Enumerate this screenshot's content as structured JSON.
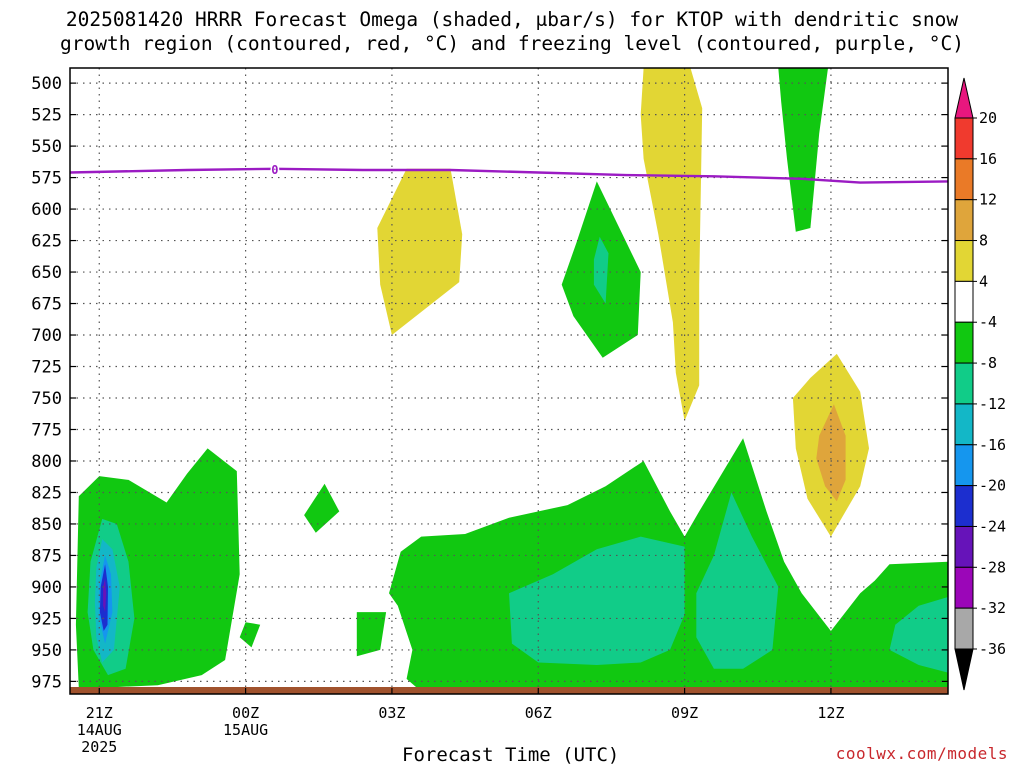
{
  "title": {
    "line1": "2025081420 HRRR Forecast Omega (shaded, μbar/s) for KTOP with dendritic snow",
    "line2": "growth region (contoured, red, °C) and freezing level (contoured, purple, °C)"
  },
  "credit": "coolwx.com/models",
  "colors": {
    "freezing_line": "#9b1bc3",
    "ground": "#a0522d",
    "grid": "#555555"
  },
  "chart_data": {
    "type": "filled-contour",
    "xlabel": "Forecast Time (UTC)",
    "ylabel": "",
    "x_range_hours_from_run": [
      0,
      30
    ],
    "x_ticks": [
      {
        "hour": 1,
        "label": [
          "21Z",
          "14AUG",
          "2025"
        ]
      },
      {
        "hour": 6,
        "label": [
          "00Z",
          "15AUG"
        ]
      },
      {
        "hour": 11,
        "label": [
          "03Z"
        ]
      },
      {
        "hour": 16,
        "label": [
          "06Z"
        ]
      },
      {
        "hour": 21,
        "label": [
          "09Z"
        ]
      },
      {
        "hour": 26,
        "label": [
          "12Z"
        ]
      }
    ],
    "y_axis": {
      "quantity": "pressure (mb)",
      "range": [
        488,
        985
      ],
      "ticks": [
        500,
        525,
        550,
        575,
        600,
        625,
        650,
        675,
        700,
        725,
        750,
        775,
        800,
        825,
        850,
        875,
        900,
        925,
        950,
        975
      ]
    },
    "grid": true,
    "colorbar": {
      "position": "right",
      "levels": [
        "20",
        "16",
        "12",
        "8",
        "4",
        "-4",
        "-8",
        "-12",
        "-16",
        "-20",
        "-24",
        "-28",
        "-32",
        "-36"
      ],
      "colors": [
        "#e8177e",
        "#f03a2e",
        "#ea7a27",
        "#dfa53b",
        "#e2d634",
        "#ffffff",
        "#11c811",
        "#11cc88",
        "#13b7c7",
        "#1596ee",
        "#1c2ecf",
        "#6613b9",
        "#9b06b8",
        "#a8a8a8",
        "#000000"
      ]
    },
    "freezing_level_0C": {
      "color": "purple",
      "label": "0",
      "points": [
        [
          0,
          571
        ],
        [
          4,
          569
        ],
        [
          7,
          568
        ],
        [
          10,
          569
        ],
        [
          13,
          569
        ],
        [
          16,
          571
        ],
        [
          19,
          573
        ],
        [
          22,
          574
        ],
        [
          25,
          576
        ],
        [
          27,
          579
        ],
        [
          30,
          578
        ]
      ]
    },
    "omega_regions": [
      {
        "value": 6,
        "polygon": [
          [
            10.5,
            615
          ],
          [
            11.5,
            568
          ],
          [
            13,
            568
          ],
          [
            13.4,
            620
          ],
          [
            13.3,
            658
          ],
          [
            11,
            700
          ],
          [
            10.6,
            660
          ]
        ]
      },
      {
        "value": 6,
        "polygon": [
          [
            19.6,
            488
          ],
          [
            21.2,
            488
          ],
          [
            21.6,
            520
          ],
          [
            21.5,
            660
          ],
          [
            21.5,
            740
          ],
          [
            21,
            768
          ],
          [
            20.7,
            730
          ],
          [
            20.6,
            690
          ],
          [
            20.1,
            620
          ],
          [
            19.6,
            560
          ],
          [
            19.5,
            525
          ]
        ]
      },
      {
        "value": -6,
        "polygon": [
          [
            17.3,
            627
          ],
          [
            18,
            578
          ],
          [
            19.5,
            650
          ],
          [
            19.4,
            700
          ],
          [
            18.2,
            718
          ],
          [
            17.2,
            685
          ],
          [
            16.8,
            660
          ]
        ]
      },
      {
        "value": -10,
        "polygon": [
          [
            18.1,
            622
          ],
          [
            18.4,
            635
          ],
          [
            18.3,
            675
          ],
          [
            17.9,
            660
          ],
          [
            17.9,
            640
          ]
        ]
      },
      {
        "value": -6,
        "polygon": [
          [
            24.2,
            488
          ],
          [
            25.9,
            488
          ],
          [
            25.6,
            540
          ],
          [
            25.3,
            615
          ],
          [
            24.8,
            618
          ],
          [
            24.5,
            560
          ],
          [
            24.3,
            515
          ]
        ]
      },
      {
        "value": 6,
        "polygon": [
          [
            24.7,
            750
          ],
          [
            25.3,
            734
          ],
          [
            26.2,
            715
          ],
          [
            27,
            745
          ],
          [
            27.3,
            790
          ],
          [
            27,
            820
          ],
          [
            26,
            860
          ],
          [
            25.2,
            830
          ],
          [
            24.8,
            790
          ]
        ]
      },
      {
        "value": 10,
        "polygon": [
          [
            25.6,
            780
          ],
          [
            26.1,
            755
          ],
          [
            26.5,
            780
          ],
          [
            26.5,
            815
          ],
          [
            26.2,
            832
          ],
          [
            25.8,
            820
          ],
          [
            25.5,
            798
          ]
        ]
      },
      {
        "value": -6,
        "polygon": [
          [
            0.3,
            828
          ],
          [
            1,
            812
          ],
          [
            2,
            815
          ],
          [
            3.3,
            833
          ],
          [
            4,
            810
          ],
          [
            4.7,
            790
          ],
          [
            5.7,
            808
          ],
          [
            5.8,
            890
          ],
          [
            5.3,
            958
          ],
          [
            4.5,
            970
          ],
          [
            3,
            978
          ],
          [
            1.1,
            980
          ],
          [
            0.3,
            980
          ],
          [
            0.2,
            930
          ]
        ]
      },
      {
        "value": -10,
        "polygon": [
          [
            0.7,
            880
          ],
          [
            1.1,
            846
          ],
          [
            1.6,
            850
          ],
          [
            2,
            880
          ],
          [
            2.2,
            925
          ],
          [
            1.9,
            965
          ],
          [
            1.3,
            970
          ],
          [
            0.8,
            950
          ],
          [
            0.6,
            920
          ]
        ]
      },
      {
        "value": -14,
        "polygon": [
          [
            0.9,
            885
          ],
          [
            1.1,
            862
          ],
          [
            1.45,
            870
          ],
          [
            1.7,
            900
          ],
          [
            1.5,
            950
          ],
          [
            1.1,
            960
          ],
          [
            0.9,
            940
          ],
          [
            0.85,
            912
          ]
        ]
      },
      {
        "value": -18,
        "polygon": [
          [
            1,
            898
          ],
          [
            1.2,
            875
          ],
          [
            1.4,
            890
          ],
          [
            1.45,
            920
          ],
          [
            1.2,
            945
          ],
          [
            1,
            925
          ]
        ]
      },
      {
        "value": -22,
        "polygon": [
          [
            1.05,
            900
          ],
          [
            1.2,
            882
          ],
          [
            1.3,
            900
          ],
          [
            1.28,
            930
          ],
          [
            1.15,
            935
          ],
          [
            1.02,
            920
          ]
        ]
      },
      {
        "value": -26,
        "polygon": [
          [
            1.13,
            900
          ],
          [
            1.2,
            893
          ],
          [
            1.24,
            905
          ],
          [
            1.2,
            920
          ],
          [
            1.13,
            915
          ]
        ]
      },
      {
        "value": -6,
        "polygon": [
          [
            8,
            843
          ],
          [
            8.7,
            818
          ],
          [
            9.2,
            840
          ],
          [
            8.4,
            857
          ]
        ]
      },
      {
        "value": -6,
        "polygon": [
          [
            9.8,
            920
          ],
          [
            10.8,
            920
          ],
          [
            10.6,
            950
          ],
          [
            9.8,
            955
          ]
        ]
      },
      {
        "value": -6,
        "polygon": [
          [
            11.3,
            872
          ],
          [
            12,
            860
          ],
          [
            13.5,
            858
          ],
          [
            15,
            845
          ],
          [
            17,
            835
          ],
          [
            18.3,
            820
          ],
          [
            19.6,
            800
          ],
          [
            20.5,
            840
          ],
          [
            21,
            860
          ],
          [
            21.5,
            840
          ],
          [
            23,
            782
          ],
          [
            23.8,
            840
          ],
          [
            24.4,
            880
          ],
          [
            25,
            905
          ],
          [
            26,
            935
          ],
          [
            27,
            905
          ],
          [
            27.5,
            895
          ],
          [
            28,
            882
          ],
          [
            30,
            880
          ],
          [
            30,
            985
          ],
          [
            27,
            985
          ],
          [
            23,
            983
          ],
          [
            17,
            983
          ],
          [
            12,
            983
          ],
          [
            11.5,
            973
          ],
          [
            11.7,
            950
          ],
          [
            11.2,
            915
          ],
          [
            10.9,
            905
          ]
        ]
      },
      {
        "value": -10,
        "polygon": [
          [
            15,
            905
          ],
          [
            16.5,
            890
          ],
          [
            18,
            870
          ],
          [
            19.5,
            860
          ],
          [
            21,
            868
          ],
          [
            21,
            922
          ],
          [
            20.5,
            950
          ],
          [
            19.5,
            960
          ],
          [
            18,
            962
          ],
          [
            16,
            960
          ],
          [
            15.1,
            945
          ]
        ]
      },
      {
        "value": -10,
        "polygon": [
          [
            21.4,
            905
          ],
          [
            22,
            875
          ],
          [
            22.6,
            825
          ],
          [
            23.3,
            860
          ],
          [
            24.2,
            900
          ],
          [
            24,
            950
          ],
          [
            23,
            965
          ],
          [
            22,
            965
          ],
          [
            21.4,
            940
          ]
        ]
      },
      {
        "value": -10,
        "polygon": [
          [
            28.2,
            930
          ],
          [
            29,
            915
          ],
          [
            30,
            908
          ],
          [
            30,
            968
          ],
          [
            29,
            962
          ],
          [
            28,
            950
          ]
        ]
      },
      {
        "value": -6,
        "polygon": [
          [
            5.8,
            940
          ],
          [
            6,
            928
          ],
          [
            6.5,
            930
          ],
          [
            6.2,
            948
          ]
        ]
      }
    ]
  }
}
